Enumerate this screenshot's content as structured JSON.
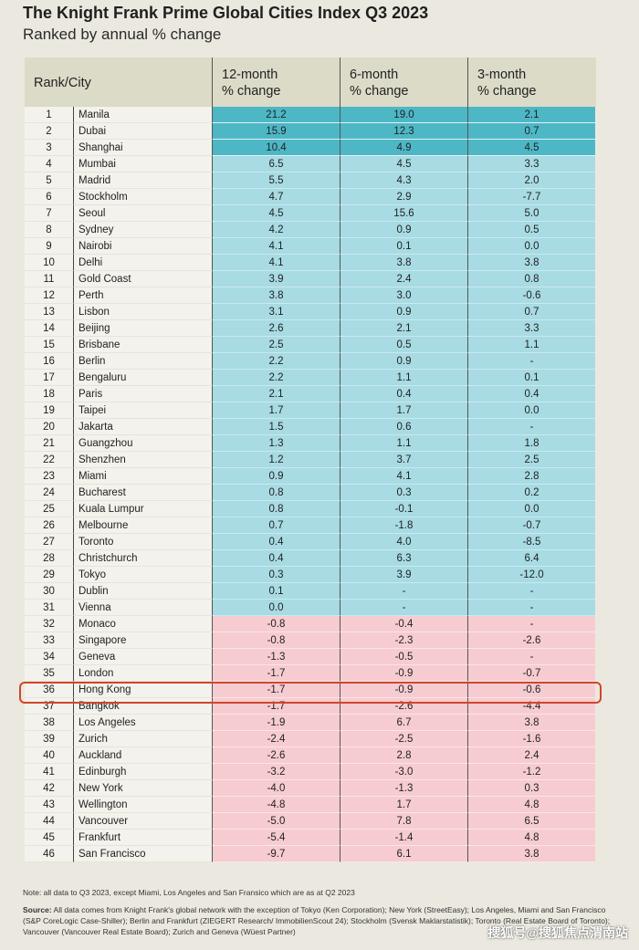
{
  "title": "The Knight Frank Prime Global Cities Index Q3 2023",
  "subtitle": "Ranked by annual % change",
  "headers": {
    "rank_city": "Rank/City",
    "m12": [
      "12-month",
      "% change"
    ],
    "m6": [
      "6-month",
      "% change"
    ],
    "m3": [
      "3-month",
      "% change"
    ]
  },
  "colors": {
    "top": "#4db7c6",
    "positive": "#a8dbe3",
    "negative": "#f6ccd1",
    "highlight": "#d2452b"
  },
  "highlighted_city": "Hong Kong",
  "rows": [
    [
      "1",
      "Manila",
      "21.2",
      "19.0",
      "2.1"
    ],
    [
      "2",
      "Dubai",
      "15.9",
      "12.3",
      "0.7"
    ],
    [
      "3",
      "Shanghai",
      "10.4",
      "4.9",
      "4.5"
    ],
    [
      "4",
      "Mumbai",
      "6.5",
      "4.5",
      "3.3"
    ],
    [
      "5",
      "Madrid",
      "5.5",
      "4.3",
      "2.0"
    ],
    [
      "6",
      "Stockholm",
      "4.7",
      "2.9",
      "-7.7"
    ],
    [
      "7",
      "Seoul",
      "4.5",
      "15.6",
      "5.0"
    ],
    [
      "8",
      "Sydney",
      "4.2",
      "0.9",
      "0.5"
    ],
    [
      "9",
      "Nairobi",
      "4.1",
      "0.1",
      "0.0"
    ],
    [
      "10",
      "Delhi",
      "4.1",
      "3.8",
      "3.8"
    ],
    [
      "11",
      "Gold Coast",
      "3.9",
      "2.4",
      "0.8"
    ],
    [
      "12",
      "Perth",
      "3.8",
      "3.0",
      "-0.6"
    ],
    [
      "13",
      "Lisbon",
      "3.1",
      "0.9",
      "0.7"
    ],
    [
      "14",
      "Beijing",
      "2.6",
      "2.1",
      "3.3"
    ],
    [
      "15",
      "Brisbane",
      "2.5",
      "0.5",
      "1.1"
    ],
    [
      "16",
      "Berlin",
      "2.2",
      "0.9",
      "-"
    ],
    [
      "17",
      "Bengaluru",
      "2.2",
      "1.1",
      "0.1"
    ],
    [
      "18",
      "Paris",
      "2.1",
      "0.4",
      "0.4"
    ],
    [
      "19",
      "Taipei",
      "1.7",
      "1.7",
      "0.0"
    ],
    [
      "20",
      "Jakarta",
      "1.5",
      "0.6",
      "-"
    ],
    [
      "21",
      "Guangzhou",
      "1.3",
      "1.1",
      "1.8"
    ],
    [
      "22",
      "Shenzhen",
      "1.2",
      "3.7",
      "2.5"
    ],
    [
      "23",
      "Miami",
      "0.9",
      "4.1",
      "2.8"
    ],
    [
      "24",
      "Bucharest",
      "0.8",
      "0.3",
      "0.2"
    ],
    [
      "25",
      "Kuala Lumpur",
      "0.8",
      "-0.1",
      "0.0"
    ],
    [
      "26",
      "Melbourne",
      "0.7",
      "-1.8",
      "-0.7"
    ],
    [
      "27",
      "Toronto",
      "0.4",
      "4.0",
      "-8.5"
    ],
    [
      "28",
      "Christchurch",
      "0.4",
      "6.3",
      "6.4"
    ],
    [
      "29",
      "Tokyo",
      "0.3",
      "3.9",
      "-12.0"
    ],
    [
      "30",
      "Dublin",
      "0.1",
      "-",
      "-"
    ],
    [
      "31",
      "Vienna",
      "0.0",
      "-",
      "-"
    ],
    [
      "32",
      "Monaco",
      "-0.8",
      "-0.4",
      "-"
    ],
    [
      "33",
      "Singapore",
      "-0.8",
      "-2.3",
      "-2.6"
    ],
    [
      "34",
      "Geneva",
      "-1.3",
      "-0.5",
      "-"
    ],
    [
      "35",
      "London",
      "-1.7",
      "-0.9",
      "-0.7"
    ],
    [
      "36",
      "Hong Kong",
      "-1.7",
      "-0.9",
      "-0.6"
    ],
    [
      "37",
      "Bangkok",
      "-1.7",
      "-2.6",
      "-4.4"
    ],
    [
      "38",
      "Los Angeles",
      "-1.9",
      "6.7",
      "3.8"
    ],
    [
      "39",
      "Zurich",
      "-2.4",
      "-2.5",
      "-1.6"
    ],
    [
      "40",
      "Auckland",
      "-2.6",
      "2.8",
      "2.4"
    ],
    [
      "41",
      "Edinburgh",
      "-3.2",
      "-3.0",
      "-1.2"
    ],
    [
      "42",
      "New York",
      "-4.0",
      "-1.3",
      "0.3"
    ],
    [
      "43",
      "Wellington",
      "-4.8",
      "1.7",
      "4.8"
    ],
    [
      "44",
      "Vancouver",
      "-5.0",
      "7.8",
      "6.5"
    ],
    [
      "45",
      "Frankfurt",
      "-5.4",
      "-1.4",
      "4.8"
    ],
    [
      "46",
      "San Francisco",
      "-9.7",
      "6.1",
      "3.8"
    ]
  ],
  "note": "Note: all data to Q3 2023, except Miami, Los Angeles and San Fransico which are as at Q2 2023",
  "source_label": "Source:",
  "source": " All data comes from Knight Frank's global network with the exception of Tokyo (Ken Corporation); New York (StreetEasy); Los Angeles, Miami and San Francisco (S&P CoreLogic Case-Shiller); Berlin and Frankfurt (ZIEGERT Research/ ImmobilienScout 24); Stockholm (Svensk Maklarstatistik); Toronto (Real Estate Board of Toronto); Vancouver (Vancouver Real Estate Board); Zurich and Geneva (Wüest Partner)",
  "watermark": "搜狐号@搜狐焦点渭南站"
}
